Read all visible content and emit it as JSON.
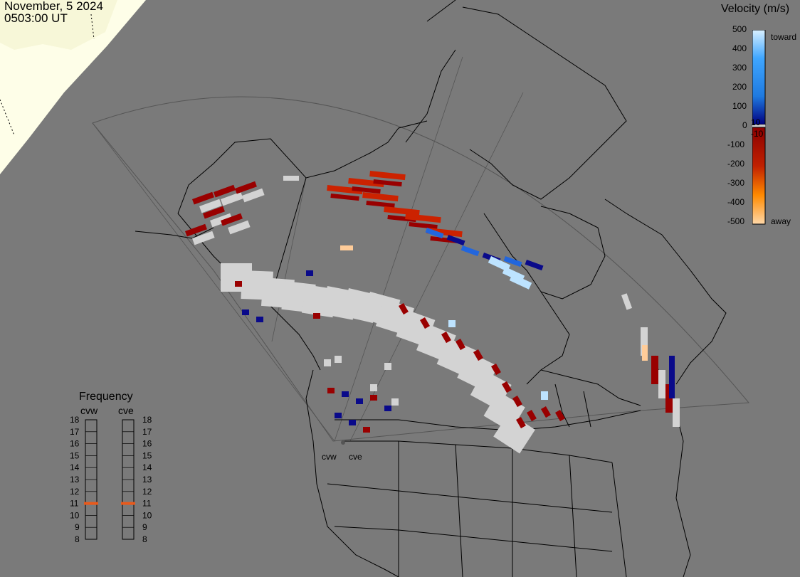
{
  "header": {
    "date": "November, 5 2024",
    "time": "0503:00 UT"
  },
  "velocity_scale": {
    "title": "Velocity (m/s)",
    "ticks": [
      "500",
      "400",
      "300",
      "200",
      "100",
      "0",
      "-100",
      "-200",
      "-300",
      "-400",
      "-500"
    ],
    "near_zero_labels": [
      "10",
      "-10"
    ],
    "end_labels": {
      "toward": "toward",
      "away": "away"
    },
    "colors": [
      "#d9f0ff",
      "#9ed4ff",
      "#3fa6ff",
      "#1f7ae0",
      "#0b3e9e",
      "#00007f",
      "#8b0000",
      "#a80f0f",
      "#cc3300",
      "#ee6a00",
      "#ff9900",
      "#ffc890"
    ]
  },
  "frequency": {
    "title": "Frequency",
    "radars": [
      {
        "name": "cvw",
        "selected": 11
      },
      {
        "name": "cve",
        "selected": 11
      }
    ],
    "ticks": [
      "18",
      "17",
      "16",
      "15",
      "14",
      "13",
      "12",
      "11",
      "10",
      "9",
      "8"
    ],
    "indicator_color": "#e85a1c"
  },
  "stations": [
    "cvw",
    "cve"
  ],
  "map": {
    "background": "#7a7a7a",
    "daylight_color": "#fefee8",
    "daylight_ice_color": "#eef6ff",
    "scatter_colors": {
      "ground": "#d3d3d3",
      "away_dark": "#990000",
      "away_red": "#cc2200",
      "toward_dark": "#0a0a8a",
      "toward_blue": "#2266dd",
      "toward_light": "#bde3ff",
      "away_orange": "#ffcc99"
    }
  }
}
